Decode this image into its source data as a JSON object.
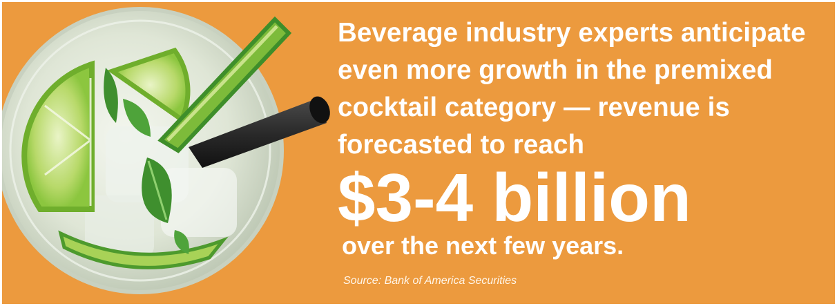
{
  "colors": {
    "background": "#EC9A3E",
    "text": "#FFFFFF",
    "lime": "#8CC63F",
    "lime_rind": "#3E8E2A",
    "mint": "#3F8F2E",
    "straw": "#2A2A2A"
  },
  "image": {
    "icon": "cocktail-glass-with-lime-and-mint"
  },
  "headline": {
    "text": "Beverage industry experts anticipate\neven more growth in the premixed\ncocktail category — revenue is\nforecasted to reach"
  },
  "figure": {
    "text": "$3-4 billion"
  },
  "tail": {
    "text": "over the next few years."
  },
  "source": {
    "text": "Source: Bank of America Securities"
  }
}
